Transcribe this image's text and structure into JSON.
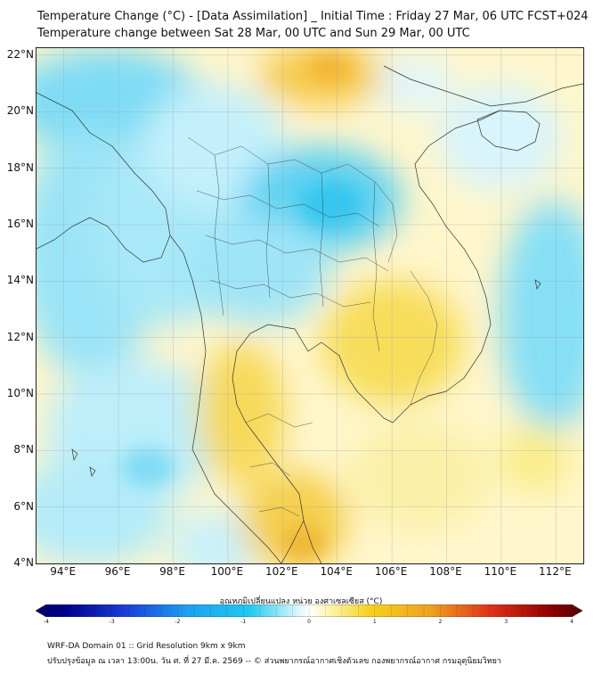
{
  "header": {
    "title_line1": "Temperature Change (°C) - [Data Assimilation] _ Initial Time : Friday 27 Mar, 06 UTC FCST+024",
    "title_line2": "Temperature change between Sat 28 Mar, 00 UTC and Sun 29 Mar, 00 UTC"
  },
  "map": {
    "lat_labels": [
      "22°N",
      "20°N",
      "18°N",
      "16°N",
      "14°N",
      "12°N",
      "10°N",
      "8°N",
      "6°N",
      "4°N"
    ],
    "lon_labels": [
      "94°E",
      "96°E",
      "98°E",
      "100°E",
      "102°E",
      "104°E",
      "106°E",
      "108°E",
      "110°E",
      "112°E"
    ],
    "lat_values": [
      22,
      20,
      18,
      16,
      14,
      12,
      10,
      8,
      6,
      4
    ],
    "lon_values": [
      94,
      96,
      98,
      100,
      102,
      104,
      106,
      108,
      110,
      112
    ],
    "extent": {
      "lon_min": 93,
      "lon_max": 113,
      "lat_min": 4,
      "lat_max": 22.25
    }
  },
  "colorbar": {
    "title": "อุณหภูมิเปลี่ยนแปลง หน่วย องศาเซลเซียส (°C)",
    "tick_labels": [
      "-4",
      "-3",
      "-2",
      "-1",
      "0",
      "1",
      "2",
      "3",
      "4"
    ],
    "tick_values": [
      -4,
      -3,
      -2,
      -1,
      0,
      1,
      2,
      3,
      4
    ]
  },
  "footer": {
    "domain_line": "WRF-DA Domain 01 :: Grid Resolution 9km x 9km",
    "credit_line": "ปรับปรุงข้อมูล ณ เวลา 13:00น. วัน ศ. ที่ 27 มี.ค. 2569 -- © ส่วนพยากรณ์อากาศเชิงตัวเลข กองพยากรณ์อากาศ กรมอุตุนิยมวิทยา"
  },
  "colors": {
    "cold_strong": "#00008b",
    "cold": "#1ec8f0",
    "neutral": "#ffffff",
    "warm": "#f5d21e",
    "warm_strong": "#8b0000"
  }
}
